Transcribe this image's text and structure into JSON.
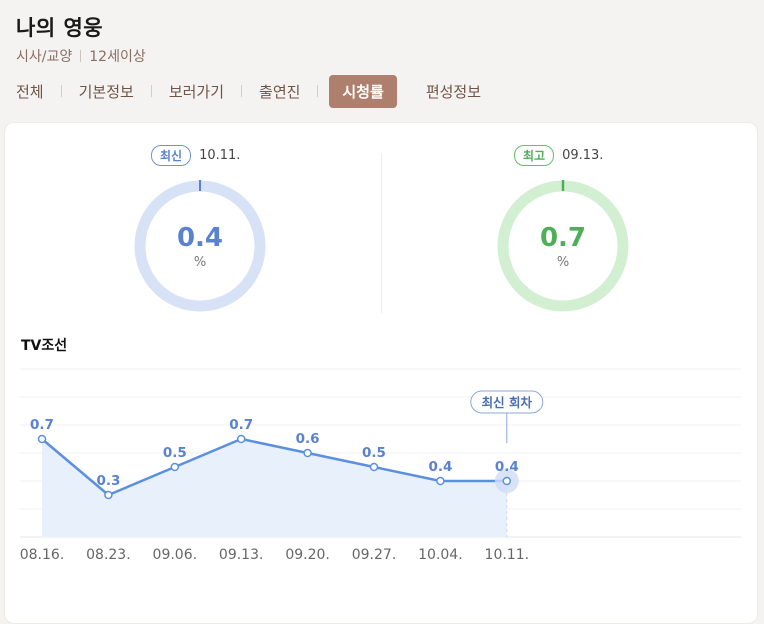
{
  "header": {
    "title": "나의 영웅",
    "genre": "시사/교양",
    "age": "12세이상"
  },
  "tabs": [
    {
      "label": "전체",
      "active": false
    },
    {
      "label": "기본정보",
      "active": false
    },
    {
      "label": "보러가기",
      "active": false
    },
    {
      "label": "출연진",
      "active": false
    },
    {
      "label": "시청률",
      "active": true
    },
    {
      "label": "편성정보",
      "active": false
    }
  ],
  "summary": {
    "latest": {
      "badge": "최신",
      "date": "10.11.",
      "value": "0.4",
      "unit": "%",
      "color": "#5b82d0",
      "ring": "#d7e2f7"
    },
    "highest": {
      "badge": "최고",
      "date": "09.13.",
      "value": "0.7",
      "unit": "%",
      "color": "#4fae58",
      "ring": "#d3efd2"
    }
  },
  "channel": "TV조선",
  "chart_data": {
    "type": "area",
    "categories": [
      "08.16.",
      "08.23.",
      "09.06.",
      "09.13.",
      "09.20.",
      "09.27.",
      "10.04.",
      "10.11."
    ],
    "values": [
      0.7,
      0.3,
      0.5,
      0.7,
      0.6,
      0.5,
      0.4,
      0.4
    ],
    "value_labels": [
      "0.7",
      "0.3",
      "0.5",
      "0.7",
      "0.6",
      "0.5",
      "0.4",
      "0.4"
    ],
    "annotation": "최신 회차",
    "annotation_index": 7,
    "ylim": [
      0,
      1.2
    ],
    "grid": true,
    "line_color": "#5b8fe0",
    "fill_color": "#e8f0fc"
  }
}
